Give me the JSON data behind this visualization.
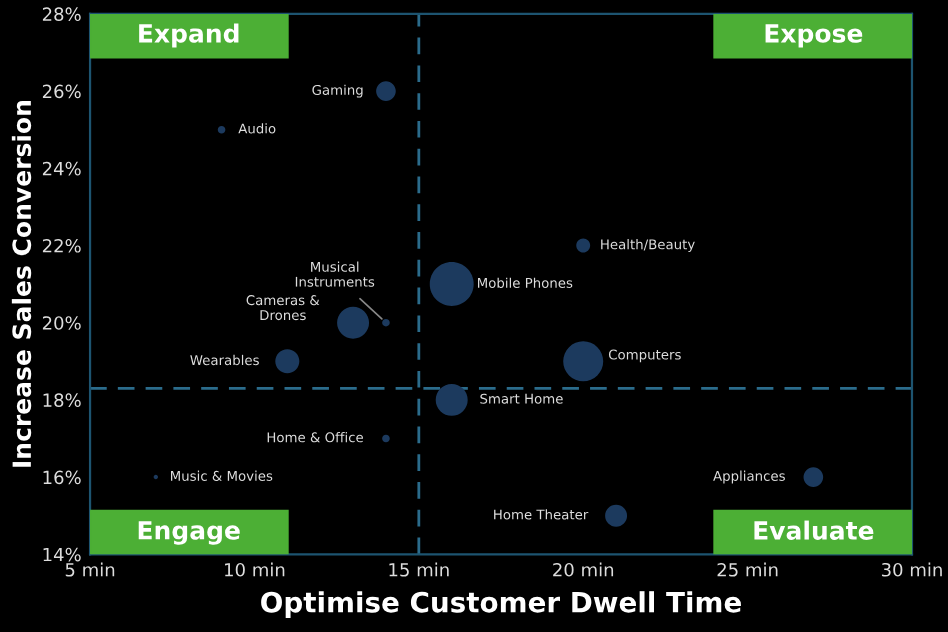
{
  "chart_data": {
    "type": "bubble",
    "xlabel": "Optimise Customer Dwell Time",
    "ylabel": "Increase Sales Conversion",
    "series": [
      {
        "color": "#1c3a5e",
        "x": [
          14,
          9,
          14,
          13,
          16,
          20,
          20,
          11,
          16,
          14,
          7,
          27,
          21
        ],
        "values": [
          26,
          25,
          20,
          20,
          21,
          22,
          19,
          19,
          18,
          17,
          16,
          16,
          15
        ],
        "sizes": [
          0.2,
          0.03,
          0.03,
          0.53,
          1,
          0.1,
          0.83,
          0.3,
          0.53,
          0.03,
          0.01,
          0.2,
          0.25
        ]
      }
    ],
    "annotations": [
      "Expand",
      "Expose",
      "Engage",
      "Evaluate",
      {
        "text": "Gaming",
        "x": 14,
        "y": 26
      },
      {
        "text": "Audio",
        "x": 9,
        "y": 25
      },
      {
        "text": "Musical\nInstruments",
        "x": 14,
        "y": 20
      },
      {
        "text": "Cameras &\nDrones",
        "x": 13,
        "y": 20
      },
      {
        "text": "Mobile Phones",
        "x": 16,
        "y": 21
      },
      {
        "text": "Health/Beauty",
        "x": 20,
        "y": 22
      },
      {
        "text": "Computers",
        "x": 20,
        "y": 19
      },
      {
        "text": "Wearables",
        "x": 11,
        "y": 19
      },
      {
        "text": "Smart Home",
        "x": 16,
        "y": 18
      },
      {
        "text": "Home & Office",
        "x": 14,
        "y": 17
      },
      {
        "text": "Music & Movies",
        "x": 7,
        "y": 16
      },
      {
        "text": "Appliances",
        "x": 27,
        "y": 16
      },
      {
        "text": "Home Theater",
        "x": 21,
        "y": 15
      }
    ],
    "ref_lines": [
      {
        "axis": "x",
        "value": 15,
        "color": "#2b6c8c",
        "line_style": "dashed"
      },
      {
        "axis": "y",
        "value": 18.3,
        "color": "#2b6c8c",
        "line_style": "dashed"
      }
    ],
    "xlim": [
      5,
      30
    ],
    "xticks": [
      {
        "value": 5,
        "label": "5 min"
      },
      {
        "value": 10,
        "label": "10 min"
      },
      {
        "value": 15,
        "label": "15 min"
      },
      {
        "value": 20,
        "label": "20 min"
      },
      {
        "value": 25,
        "label": "25 min"
      },
      {
        "value": 30,
        "label": "30 min"
      }
    ],
    "ylim": [
      14,
      28
    ],
    "yticks": [
      {
        "value": 14,
        "label": "14%"
      },
      {
        "value": 16,
        "label": "16%"
      },
      {
        "value": 18,
        "label": "18%"
      },
      {
        "value": 20,
        "label": "20%"
      },
      {
        "value": 22,
        "label": "22%"
      },
      {
        "value": 24,
        "label": "24%"
      },
      {
        "value": 26,
        "label": "26%"
      },
      {
        "value": 28,
        "label": "28%"
      }
    ],
    "grid": false
  }
}
